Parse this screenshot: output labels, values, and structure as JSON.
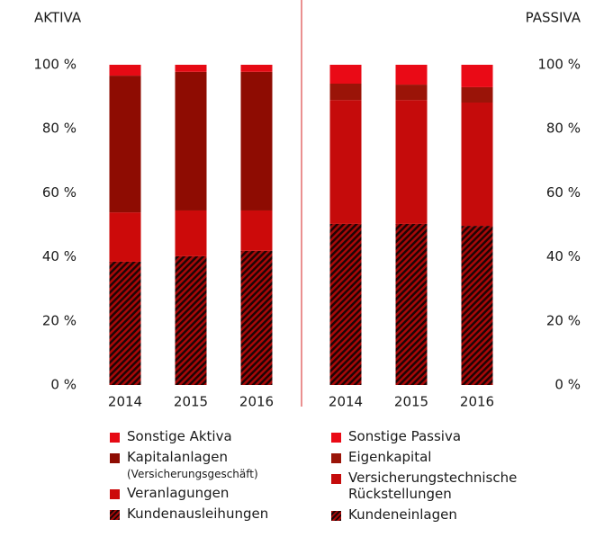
{
  "chart_data": [
    {
      "type": "bar",
      "stacked": true,
      "title": "AKTIVA",
      "y_axis_side": "left",
      "categories": [
        "2014",
        "2015",
        "2016"
      ],
      "ylim": [
        0,
        100
      ],
      "yticks": [
        {
          "value": 0,
          "label": "0 %"
        },
        {
          "value": 20,
          "label": "20 %"
        },
        {
          "value": 40,
          "label": "40 %"
        },
        {
          "value": 60,
          "label": "60 %"
        },
        {
          "value": 80,
          "label": "80 %"
        },
        {
          "value": 100,
          "label": "100 %"
        }
      ],
      "series": [
        {
          "name": "Kundenausleihungen",
          "color": "#a80808",
          "hatch": true,
          "values": [
            38.5,
            40.2,
            41.9
          ]
        },
        {
          "name": "Veranlagungen",
          "color": "#cc0a0a",
          "values": [
            15.4,
            14.3,
            12.6
          ]
        },
        {
          "name": "Kapitalanlagen",
          "subname": "(Versicherungsgeschäft)",
          "color": "#8e0c02",
          "values": [
            42.7,
            43.3,
            43.3
          ]
        },
        {
          "name": "Sonstige Aktiva",
          "color": "#e60a14",
          "values": [
            3.4,
            2.2,
            2.2
          ]
        }
      ]
    },
    {
      "type": "bar",
      "stacked": true,
      "title": "PASSIVA",
      "y_axis_side": "right",
      "categories": [
        "2014",
        "2015",
        "2016"
      ],
      "ylim": [
        0,
        100
      ],
      "yticks": [
        {
          "value": 0,
          "label": "0 %"
        },
        {
          "value": 20,
          "label": "20 %"
        },
        {
          "value": 40,
          "label": "40 %"
        },
        {
          "value": 60,
          "label": "60 %"
        },
        {
          "value": 80,
          "label": "80 %"
        },
        {
          "value": 100,
          "label": "100 %"
        }
      ],
      "series": [
        {
          "name": "Kundeneinlagen",
          "color": "#a80808",
          "hatch": true,
          "values": [
            50.3,
            50.3,
            49.7
          ]
        },
        {
          "name": "Versicherungstechnische Rückstellungen",
          "color": "#c50b0b",
          "values": [
            38.7,
            38.7,
            38.5
          ]
        },
        {
          "name": "Eigenkapital",
          "color": "#9a1408",
          "values": [
            5.1,
            4.8,
            4.8
          ]
        },
        {
          "name": "Sonstige Passiva",
          "color": "#ea0a16",
          "values": [
            5.9,
            6.2,
            7.0
          ]
        }
      ]
    }
  ]
}
